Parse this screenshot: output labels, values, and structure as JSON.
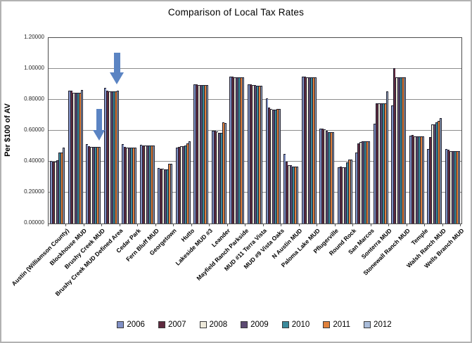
{
  "chart_data": {
    "type": "bar",
    "title": "Comparison of Local Tax Rates",
    "xlabel": "",
    "ylabel": "Per $100 of AV",
    "ylim": [
      0,
      1.2
    ],
    "ytick_step": 0.2,
    "y_ticks": [
      "0.00000",
      "0.20000",
      "0.40000",
      "0.60000",
      "0.80000",
      "1.00000",
      "1.20000"
    ],
    "grid": true,
    "gridline_color": "#8c8c8c",
    "plot_border_color": "#4d4d4d",
    "legend_position": "bottom",
    "categories": [
      "Austin (Williamson County)",
      "Blockhouse MUD",
      "Brushy Creek MUD",
      "Brushy Creek MUD Defined Area",
      "Cedar Park",
      "Fern Bluff MUD",
      "Georgetown",
      "Hutto",
      "Lakeside MUD #3",
      "Leander",
      "Mayfield Ranch Parkside",
      "MUD #11 Terra Vista",
      "MUD #9 Vista Oaks",
      "N Austin MUD",
      "Paloma Lake MUD",
      "Pflugerville",
      "Round Rock",
      "San Marcos",
      "Sonterra MUD",
      "Stonewall Ranch MUD",
      "Temple",
      "Walsh Ranch MUD",
      "Wells Branch MUD"
    ],
    "series": [
      {
        "name": "2006",
        "color": "#8191c6",
        "values": [
          0.405,
          0.86,
          0.515,
          0.875,
          0.515,
          0.51,
          0.36,
          0.49,
          0.9,
          0.6,
          0.95,
          0.9,
          0.81,
          0.45,
          0.95,
          0.615,
          0.365,
          0.46,
          0.645,
          0.765,
          0.57,
          0.48,
          0.48
        ]
      },
      {
        "name": "2007",
        "color": "#5f2a3f",
        "values": [
          0.4,
          0.86,
          0.5,
          0.86,
          0.495,
          0.505,
          0.355,
          0.495,
          0.9,
          0.6,
          0.95,
          0.9,
          0.75,
          0.4,
          0.95,
          0.615,
          0.37,
          0.52,
          0.775,
          1.005,
          0.575,
          0.56,
          0.475
        ]
      },
      {
        "name": "2008",
        "color": "#eeeadb",
        "values": [
          0.4,
          0.845,
          0.495,
          0.855,
          0.49,
          0.505,
          0.355,
          0.5,
          0.895,
          0.595,
          0.945,
          0.895,
          0.74,
          0.375,
          0.945,
          0.61,
          0.365,
          0.525,
          0.775,
          0.945,
          0.565,
          0.64,
          0.47
        ]
      },
      {
        "name": "2009",
        "color": "#5c4a72",
        "values": [
          0.41,
          0.845,
          0.495,
          0.855,
          0.49,
          0.505,
          0.35,
          0.5,
          0.895,
          0.585,
          0.945,
          0.895,
          0.735,
          0.375,
          0.945,
          0.6,
          0.365,
          0.53,
          0.775,
          0.945,
          0.565,
          0.64,
          0.47
        ]
      },
      {
        "name": "2010",
        "color": "#3b8a9b",
        "values": [
          0.46,
          0.845,
          0.495,
          0.855,
          0.49,
          0.505,
          0.35,
          0.505,
          0.895,
          0.585,
          0.945,
          0.89,
          0.735,
          0.37,
          0.945,
          0.59,
          0.395,
          0.53,
          0.775,
          0.945,
          0.565,
          0.655,
          0.47
        ]
      },
      {
        "name": "2011",
        "color": "#e0813c",
        "values": [
          0.46,
          0.845,
          0.495,
          0.855,
          0.49,
          0.505,
          0.385,
          0.52,
          0.895,
          0.655,
          0.945,
          0.89,
          0.74,
          0.37,
          0.945,
          0.59,
          0.415,
          0.53,
          0.775,
          0.945,
          0.565,
          0.665,
          0.47
        ]
      },
      {
        "name": "2012",
        "color": "#a9bcd9",
        "values": [
          0.49,
          0.865,
          0.495,
          0.86,
          0.49,
          0.505,
          0.385,
          0.53,
          0.895,
          0.65,
          0.945,
          0.89,
          0.74,
          0.37,
          0.945,
          0.59,
          0.415,
          0.53,
          0.855,
          0.945,
          0.565,
          0.68,
          0.47
        ]
      }
    ],
    "annotations": [
      {
        "shape": "down-arrow",
        "target_category": "Brushy Creek MUD",
        "color": "#5b84c3",
        "size": "small"
      },
      {
        "shape": "down-arrow",
        "target_category": "Brushy Creek MUD Defined Area",
        "color": "#5b84c3",
        "size": "large"
      }
    ]
  }
}
